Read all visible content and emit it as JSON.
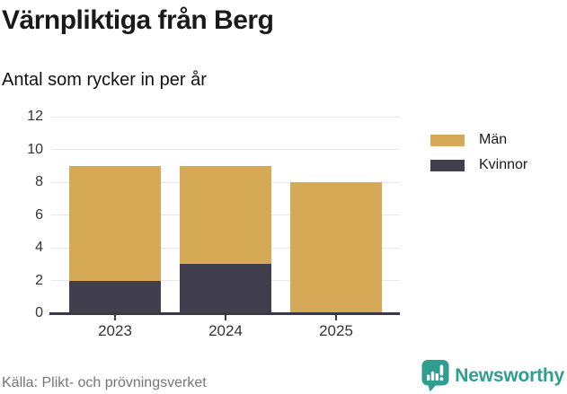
{
  "header": {
    "title": "Värnpliktiga från Berg",
    "subtitle": "Antal som rycker in per år"
  },
  "footer": {
    "source": "Källa: Plikt- och prövningsverket",
    "brand": "Newsworthy"
  },
  "colors": {
    "men": "#d6a957",
    "women": "#413e4e",
    "grid": "#e8e8e8",
    "axis": "#3a3844",
    "tick_text": "#333333",
    "title_text": "#1a1a1a",
    "source_text": "#757575",
    "brand_teal": "#2f9d90",
    "background": "#ffffff"
  },
  "chart_data": {
    "type": "bar",
    "stacked": true,
    "title": "Värnpliktiga från Berg",
    "subtitle": "Antal som rycker in per år",
    "categories": [
      "2023",
      "2024",
      "2025"
    ],
    "series": [
      {
        "name": "Män",
        "color": "#d6a957",
        "values": [
          7,
          6,
          8
        ]
      },
      {
        "name": "Kvinnor",
        "color": "#413e4e",
        "values": [
          2,
          3,
          0
        ]
      }
    ],
    "totals": [
      9,
      9,
      8
    ],
    "xlabel": "",
    "ylabel": "",
    "ylim": [
      0,
      12
    ],
    "ytick_step": 2,
    "yticks": [
      0,
      2,
      4,
      6,
      8,
      10,
      12
    ],
    "grid": true,
    "legend_position": "right",
    "legend_order": [
      "Män",
      "Kvinnor"
    ]
  }
}
